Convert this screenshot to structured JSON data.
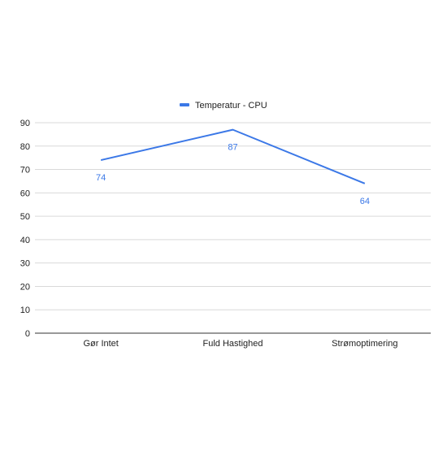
{
  "chart_data": {
    "type": "line",
    "categories": [
      "Gør Intet",
      "Fuld Hastighed",
      "Strømoptimering"
    ],
    "series": [
      {
        "name": "Temperatur - CPU",
        "values": [
          74,
          87,
          64
        ],
        "color": "#3b78e7"
      }
    ],
    "ylim": [
      0,
      90
    ],
    "yticks": [
      0,
      10,
      20,
      30,
      40,
      50,
      60,
      70,
      80,
      90
    ],
    "grid": true,
    "legend_position": "top",
    "data_labels": true,
    "colors": {
      "grid": "#d9d9d9",
      "axis": "#333333",
      "tick_text": "#222222",
      "label_text": "#3b78e7"
    }
  }
}
